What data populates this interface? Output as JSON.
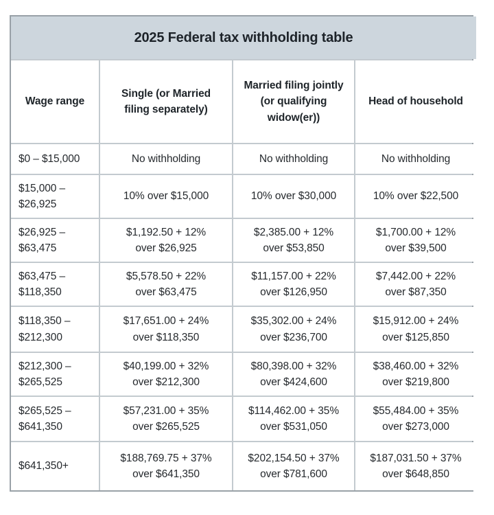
{
  "chart_data": {
    "type": "table",
    "title": "2025 Federal tax withholding table",
    "columns": [
      "Wage range",
      "Single (or Married\nfiling separately)",
      "Married filing jointly\n(or qualifying\nwidow(er))",
      "Head of household"
    ],
    "rows": [
      [
        "$0 – $15,000",
        "No withholding",
        "No withholding",
        "No withholding"
      ],
      [
        "$15,000 –\n$26,925",
        "10% over $15,000",
        "10% over $30,000",
        "10% over $22,500"
      ],
      [
        "$26,925 –\n$63,475",
        "$1,192.50 + 12%\nover $26,925",
        "$2,385.00 + 12%\nover $53,850",
        "$1,700.00 + 12%\nover $39,500"
      ],
      [
        "$63,475 –\n$118,350",
        "$5,578.50 + 22%\nover $63,475",
        "$11,157.00 + 22%\nover $126,950",
        "$7,442.00 + 22%\nover $87,350"
      ],
      [
        "$118,350 –\n$212,300",
        "$17,651.00 + 24%\nover $118,350",
        "$35,302.00 + 24%\nover $236,700",
        "$15,912.00 + 24%\nover $125,850"
      ],
      [
        "$212,300 –\n$265,525",
        "$40,199.00 + 32%\nover $212,300",
        "$80,398.00 + 32%\nover $424,600",
        "$38,460.00 + 32%\nover $219,800"
      ],
      [
        "$265,525 –\n$641,350",
        "$57,231.00 + 35%\nover $265,525",
        "$114,462.00 + 35%\nover $531,050",
        "$55,484.00 + 35%\nover $273,000"
      ],
      [
        "$641,350+",
        "$188,769.75 + 37%\nover $641,350",
        "$202,154.50 + 37%\nover $781,600",
        "$187,031.50 + 37%\nover $648,850"
      ]
    ],
    "layout": {
      "legend": "none",
      "grid": "on",
      "title_position": "top-band"
    },
    "colors": {
      "title_band_background": "#cdd6dd",
      "grid_line": "#c3cacf",
      "outer_border": "#99a1a7",
      "cell_background": "#ffffff",
      "text": "#25292d"
    }
  }
}
